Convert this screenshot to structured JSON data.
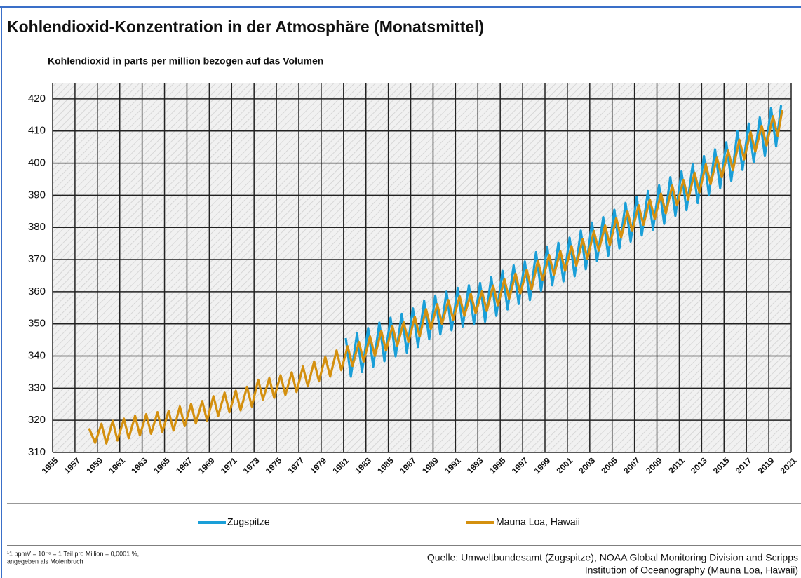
{
  "chart_data": {
    "type": "line",
    "title": "Kohlendioxid-Konzentration in der Atmosphäre (Monatsmittel)",
    "subtitle": "Kohlendioxid in parts per million bezogen auf das Volumen",
    "xlim": [
      1955,
      2021
    ],
    "xticks": [
      1955,
      1957,
      1959,
      1961,
      1963,
      1965,
      1967,
      1969,
      1971,
      1973,
      1975,
      1977,
      1979,
      1981,
      1983,
      1985,
      1987,
      1989,
      1991,
      1993,
      1995,
      1997,
      1999,
      2001,
      2003,
      2005,
      2007,
      2009,
      2011,
      2013,
      2015,
      2017,
      2019,
      2021
    ],
    "ylim": [
      310,
      425
    ],
    "yticks": [
      310,
      320,
      330,
      340,
      350,
      360,
      370,
      380,
      390,
      400,
      410,
      420
    ],
    "grid": true,
    "legend": "bottom",
    "series": [
      {
        "name": "Zugspitze",
        "color": "#1a9fd8",
        "x": [
          1981.2,
          1981.65,
          1982.2,
          1982.65,
          1983.2,
          1983.65,
          1984.2,
          1984.65,
          1985.2,
          1985.65,
          1986.2,
          1986.65,
          1987.2,
          1987.65,
          1988.2,
          1988.65,
          1989.2,
          1989.65,
          1990.2,
          1990.65,
          1991.2,
          1991.65,
          1992.2,
          1992.65,
          1993.2,
          1993.65,
          1994.2,
          1994.65,
          1995.2,
          1995.65,
          1996.2,
          1996.65,
          1997.2,
          1997.65,
          1998.2,
          1998.65,
          1999.2,
          1999.65,
          2000.2,
          2000.65,
          2001.2,
          2001.65,
          2002.2,
          2002.65,
          2003.2,
          2003.65,
          2004.2,
          2004.65,
          2005.2,
          2005.65,
          2006.2,
          2006.65,
          2007.2,
          2007.65,
          2008.2,
          2008.65,
          2009.2,
          2009.65,
          2010.2,
          2010.65,
          2011.2,
          2011.65,
          2012.2,
          2012.65,
          2013.2,
          2013.65,
          2014.2,
          2014.65,
          2015.2,
          2015.65,
          2016.2,
          2016.65,
          2017.2,
          2017.65,
          2018.2,
          2018.65,
          2019.2,
          2019.65,
          2020.1
        ],
        "values": [
          345.6,
          333.6,
          347.0,
          335.0,
          348.7,
          336.7,
          350.4,
          338.4,
          351.9,
          339.9,
          353.1,
          341.1,
          354.8,
          342.8,
          357.2,
          345.2,
          358.7,
          346.7,
          360.0,
          348.0,
          361.2,
          349.2,
          362.0,
          350.0,
          362.7,
          350.7,
          364.5,
          352.5,
          366.5,
          354.5,
          368.2,
          356.2,
          369.4,
          357.4,
          372.3,
          360.3,
          374.0,
          362.0,
          375.2,
          363.2,
          376.8,
          364.8,
          379.0,
          367.0,
          381.5,
          369.5,
          383.2,
          371.2,
          385.5,
          373.5,
          387.6,
          375.6,
          389.5,
          377.5,
          391.3,
          379.3,
          393.1,
          381.1,
          395.6,
          383.6,
          397.4,
          385.4,
          399.6,
          387.6,
          402.2,
          390.2,
          404.3,
          392.3,
          406.5,
          394.5,
          409.9,
          397.9,
          412.3,
          400.3,
          414.2,
          402.2,
          417.2,
          405.2,
          418.0
        ]
      },
      {
        "name": "Mauna Loa, Hawaii",
        "color": "#d4900f",
        "x": [
          1958.25,
          1958.8,
          1959.37,
          1959.8,
          1960.37,
          1960.8,
          1961.37,
          1961.8,
          1962.37,
          1962.8,
          1963.37,
          1963.8,
          1964.37,
          1964.8,
          1965.37,
          1965.8,
          1966.37,
          1966.8,
          1967.37,
          1967.8,
          1968.37,
          1968.8,
          1969.37,
          1969.8,
          1970.37,
          1970.8,
          1971.37,
          1971.8,
          1972.37,
          1972.8,
          1973.37,
          1973.8,
          1974.37,
          1974.8,
          1975.37,
          1975.8,
          1976.37,
          1976.8,
          1977.37,
          1977.8,
          1978.37,
          1978.8,
          1979.37,
          1979.8,
          1980.37,
          1980.8,
          1981.37,
          1981.8,
          1982.37,
          1982.8,
          1983.37,
          1983.8,
          1984.37,
          1984.8,
          1985.37,
          1985.8,
          1986.37,
          1986.8,
          1987.37,
          1987.8,
          1988.37,
          1988.8,
          1989.37,
          1989.8,
          1990.37,
          1990.8,
          1991.37,
          1991.8,
          1992.37,
          1992.8,
          1993.37,
          1993.8,
          1994.37,
          1994.8,
          1995.37,
          1995.8,
          1996.37,
          1996.8,
          1997.37,
          1997.8,
          1998.37,
          1998.8,
          1999.37,
          1999.8,
          2000.37,
          2000.8,
          2001.37,
          2001.8,
          2002.37,
          2002.8,
          2003.37,
          2003.8,
          2004.37,
          2004.8,
          2005.37,
          2005.8,
          2006.37,
          2006.8,
          2007.37,
          2007.8,
          2008.37,
          2008.8,
          2009.37,
          2009.8,
          2010.37,
          2010.8,
          2011.37,
          2011.8,
          2012.37,
          2012.8,
          2013.37,
          2013.8,
          2014.37,
          2014.8,
          2015.37,
          2015.8,
          2016.37,
          2016.8,
          2017.37,
          2017.8,
          2018.37,
          2018.8,
          2019.37,
          2019.8,
          2020.2
        ],
        "values": [
          317.5,
          313.0,
          318.9,
          312.8,
          319.8,
          313.7,
          320.5,
          314.4,
          321.4,
          315.3,
          321.9,
          315.8,
          322.5,
          316.4,
          322.9,
          316.8,
          324.3,
          318.2,
          325.1,
          319.0,
          326.0,
          319.9,
          327.5,
          321.4,
          328.6,
          322.5,
          329.2,
          323.1,
          330.4,
          324.3,
          332.6,
          326.5,
          333.1,
          327.0,
          334.0,
          327.9,
          334.9,
          328.8,
          336.7,
          330.6,
          338.3,
          332.2,
          339.7,
          333.6,
          341.7,
          335.6,
          343.0,
          336.9,
          344.4,
          338.3,
          346.1,
          340.0,
          347.8,
          341.7,
          349.3,
          343.2,
          350.5,
          344.4,
          352.2,
          346.1,
          354.6,
          348.5,
          356.1,
          350.0,
          357.4,
          351.3,
          358.6,
          352.5,
          359.4,
          353.3,
          360.1,
          354.0,
          361.9,
          355.8,
          363.9,
          357.8,
          365.6,
          359.5,
          366.8,
          360.7,
          369.7,
          363.6,
          371.4,
          365.3,
          372.6,
          366.5,
          374.2,
          368.1,
          376.4,
          370.3,
          378.9,
          372.8,
          380.6,
          374.5,
          382.9,
          376.8,
          385.0,
          378.9,
          386.9,
          380.8,
          388.7,
          382.6,
          390.5,
          384.4,
          393.0,
          386.9,
          394.8,
          388.7,
          397.0,
          390.9,
          399.6,
          393.5,
          401.7,
          395.6,
          403.9,
          397.8,
          407.3,
          401.2,
          409.7,
          403.6,
          411.6,
          405.5,
          414.6,
          408.5,
          416.5
        ]
      }
    ],
    "footnote": [
      "¹1 ppmV = 10⁻⁶ = 1 Teil pro Million = 0,0001 %,",
      "angegeben als Molenbruch"
    ],
    "source": [
      "Quelle: Umweltbundesamt (Zugspitze), NOAA Global Monitoring Division and Scripps",
      "Institution of Oceanography  (Mauna Loa, Hawaii)"
    ]
  }
}
